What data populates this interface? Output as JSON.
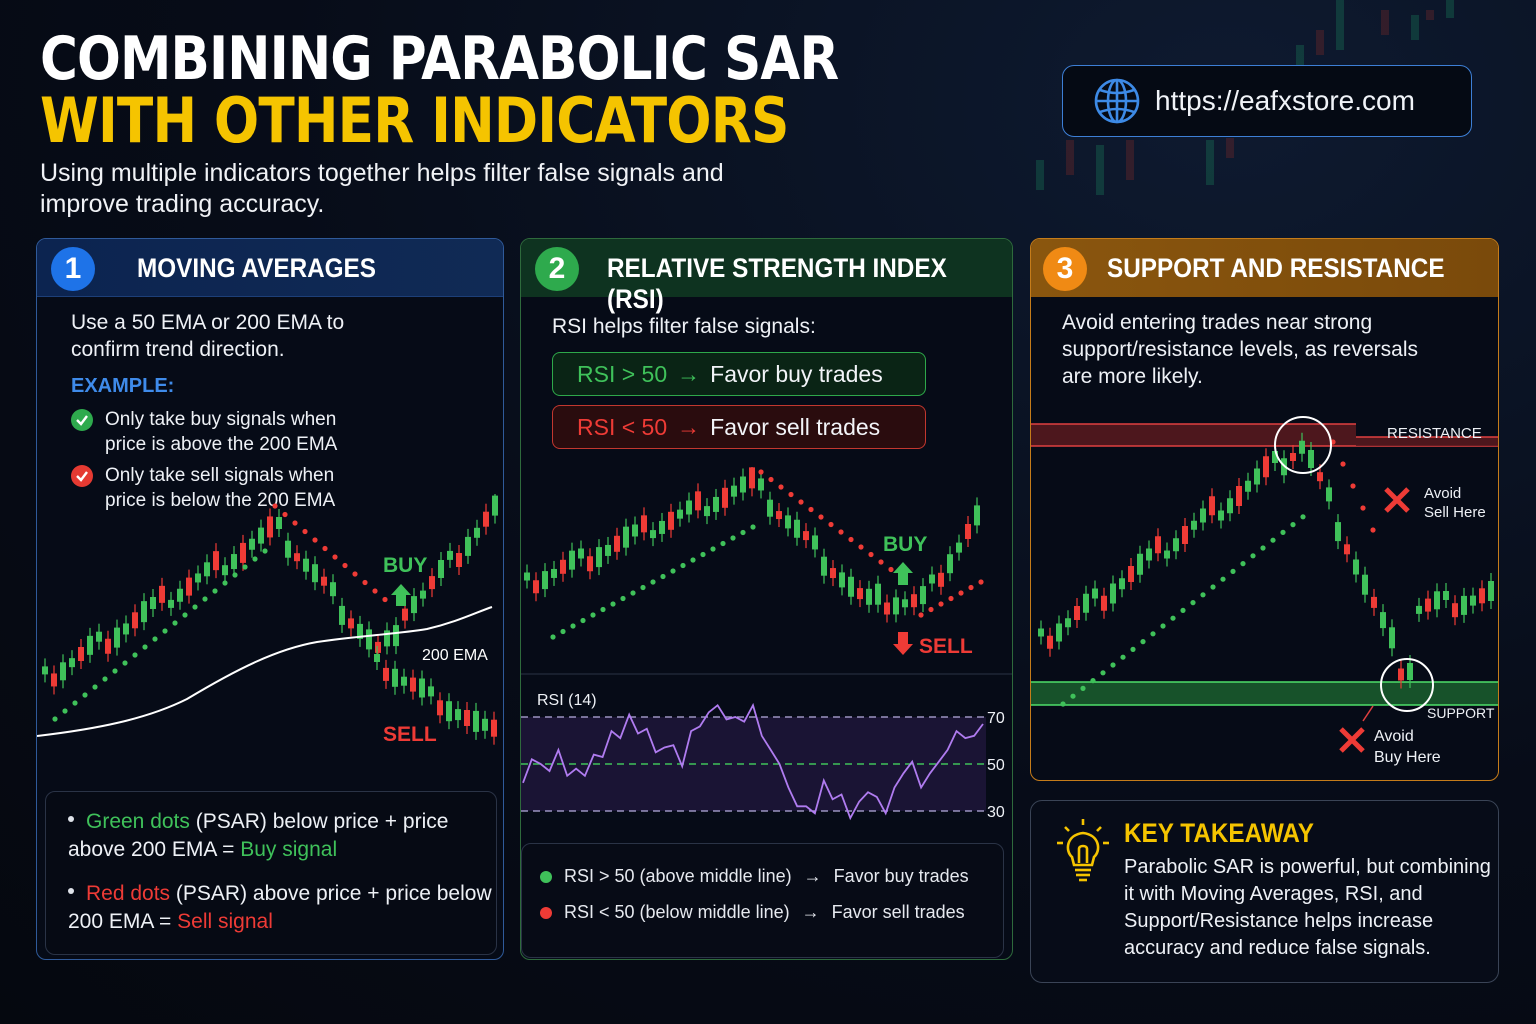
{
  "header": {
    "title_line1": "COMBINING PARABOLIC SAR",
    "title_line2": "WITH OTHER INDICATORS",
    "subtitle": "Using multiple indicators together helps filter false signals and improve trading accuracy.",
    "url": "https://eafxstore.com",
    "url_icon": "globe-icon"
  },
  "colors": {
    "title_yellow": "#f5c400",
    "buy_green": "#3fc15a",
    "sell_red": "#ee3b36",
    "panel1_blue": "#1e73e8",
    "panel2_green": "#2eaa4d",
    "panel3_orange": "#f08a14",
    "rsi_line": "#b07cf0"
  },
  "panels": [
    {
      "number": "1",
      "title": "MOVING AVERAGES",
      "intro": "Use a 50 EMA or 200 EMA to confirm trend direction.",
      "example_label": "EXAMPLE:",
      "examples": [
        {
          "icon": "green-check-icon",
          "text": "Only take buy signals when price is above the 200 EMA"
        },
        {
          "icon": "red-check-icon",
          "text": "Only take sell signals when price is below the 200 EMA"
        }
      ],
      "chart_labels": {
        "buy": "BUY",
        "sell": "SELL",
        "ema": "200 EMA"
      },
      "bullets": [
        {
          "colored": "Green dots",
          "mid": " (PSAR) below price + price above 200 EMA = ",
          "signal": "Buy signal"
        },
        {
          "colored": "Red dots",
          "mid": " (PSAR) above price + price below 200 EMA = ",
          "signal": "Sell signal"
        }
      ]
    },
    {
      "number": "2",
      "title": "RELATIVE STRENGTH INDEX (RSI)",
      "intro": "RSI helps filter false signals:",
      "rules": [
        {
          "condition": "RSI > 50",
          "arrow": "→",
          "action": "Favor buy trades"
        },
        {
          "condition": "RSI < 50",
          "arrow": "→",
          "action": "Favor sell trades"
        }
      ],
      "chart_labels": {
        "buy": "BUY",
        "sell": "SELL"
      },
      "rsi_label": "RSI (14)",
      "rsi_levels": [
        "70",
        "50",
        "30"
      ],
      "legend": [
        {
          "text": "RSI > 50 (above middle line)",
          "arrow": "→",
          "action": "Favor buy trades"
        },
        {
          "text": "RSI < 50 (below middle line)",
          "arrow": "→",
          "action": "Favor sell trades"
        }
      ]
    },
    {
      "number": "3",
      "title": "SUPPORT AND RESISTANCE",
      "intro": "Avoid entering trades near strong support/resistance levels, as reversals are more likely.",
      "chart_labels": {
        "resistance": "RESISTANCE",
        "support": "SUPPORT",
        "avoid_sell_1": "Avoid",
        "avoid_sell_2": "Sell Here",
        "avoid_buy_1": "Avoid",
        "avoid_buy_2": "Buy Here"
      }
    }
  ],
  "takeaway": {
    "icon": "lightbulb-icon",
    "title": "KEY TAKEAWAY",
    "body": "Parabolic SAR is powerful, but combining it with Moving Averages, RSI, and Support/Resistance helps increase accuracy and reduce false signals."
  },
  "rsi_series": [
    42,
    52,
    50,
    47,
    56,
    45,
    48,
    45,
    54,
    53,
    64,
    61,
    71,
    63,
    65,
    55,
    57,
    58,
    49,
    64,
    66,
    72,
    75,
    69,
    70,
    68,
    75,
    62,
    56,
    50,
    40,
    32,
    32,
    29,
    43,
    35,
    37,
    27,
    34,
    38,
    36,
    29,
    40,
    46,
    51,
    40,
    46,
    51,
    56,
    64,
    61,
    62,
    67
  ]
}
